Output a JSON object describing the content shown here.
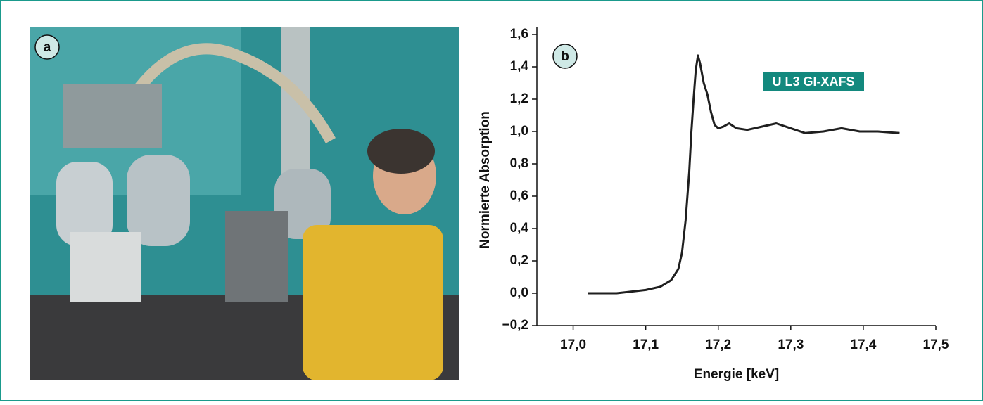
{
  "photo": {
    "panel_label": "a"
  },
  "chart_data": {
    "type": "line",
    "panel_label": "b",
    "annotation": "U L3 GI-XAFS",
    "x_label": "Energie [keV]",
    "y_label": "Normierte Absorption",
    "x": [
      17.02,
      17.06,
      17.1,
      17.12,
      17.135,
      17.145,
      17.15,
      17.155,
      17.16,
      17.163,
      17.166,
      17.169,
      17.172,
      17.175,
      17.18,
      17.185,
      17.19,
      17.195,
      17.2,
      17.207,
      17.215,
      17.225,
      17.24,
      17.26,
      17.28,
      17.3,
      17.32,
      17.345,
      17.37,
      17.395,
      17.42,
      17.45
    ],
    "values": [
      0.0,
      0.0,
      0.02,
      0.04,
      0.08,
      0.15,
      0.25,
      0.45,
      0.75,
      1.0,
      1.2,
      1.38,
      1.47,
      1.42,
      1.3,
      1.23,
      1.12,
      1.04,
      1.02,
      1.03,
      1.05,
      1.02,
      1.01,
      1.03,
      1.05,
      1.02,
      0.99,
      1.0,
      1.02,
      1.0,
      1.0,
      0.99
    ],
    "color": "#1f1f1f",
    "xlim": [
      16.95,
      17.5
    ],
    "xticks": [
      {
        "value": 17.0,
        "label": "17,0"
      },
      {
        "value": 17.1,
        "label": "17,1"
      },
      {
        "value": 17.2,
        "label": "17,2"
      },
      {
        "value": 17.3,
        "label": "17,3"
      },
      {
        "value": 17.4,
        "label": "17,4"
      },
      {
        "value": 17.5,
        "label": "17,5"
      }
    ],
    "ylim": [
      -0.2,
      1.6
    ],
    "yticks": [
      {
        "value": -0.2,
        "label": "−0,2"
      },
      {
        "value": 0.0,
        "label": "0,0"
      },
      {
        "value": 0.2,
        "label": "0,2"
      },
      {
        "value": 0.4,
        "label": "0,4"
      },
      {
        "value": 0.6,
        "label": "0,6"
      },
      {
        "value": 0.8,
        "label": "0,8"
      },
      {
        "value": 1.0,
        "label": "1,0"
      },
      {
        "value": 1.2,
        "label": "1,2"
      },
      {
        "value": 1.4,
        "label": "1,4"
      },
      {
        "value": 1.6,
        "label": "1,6"
      }
    ]
  }
}
